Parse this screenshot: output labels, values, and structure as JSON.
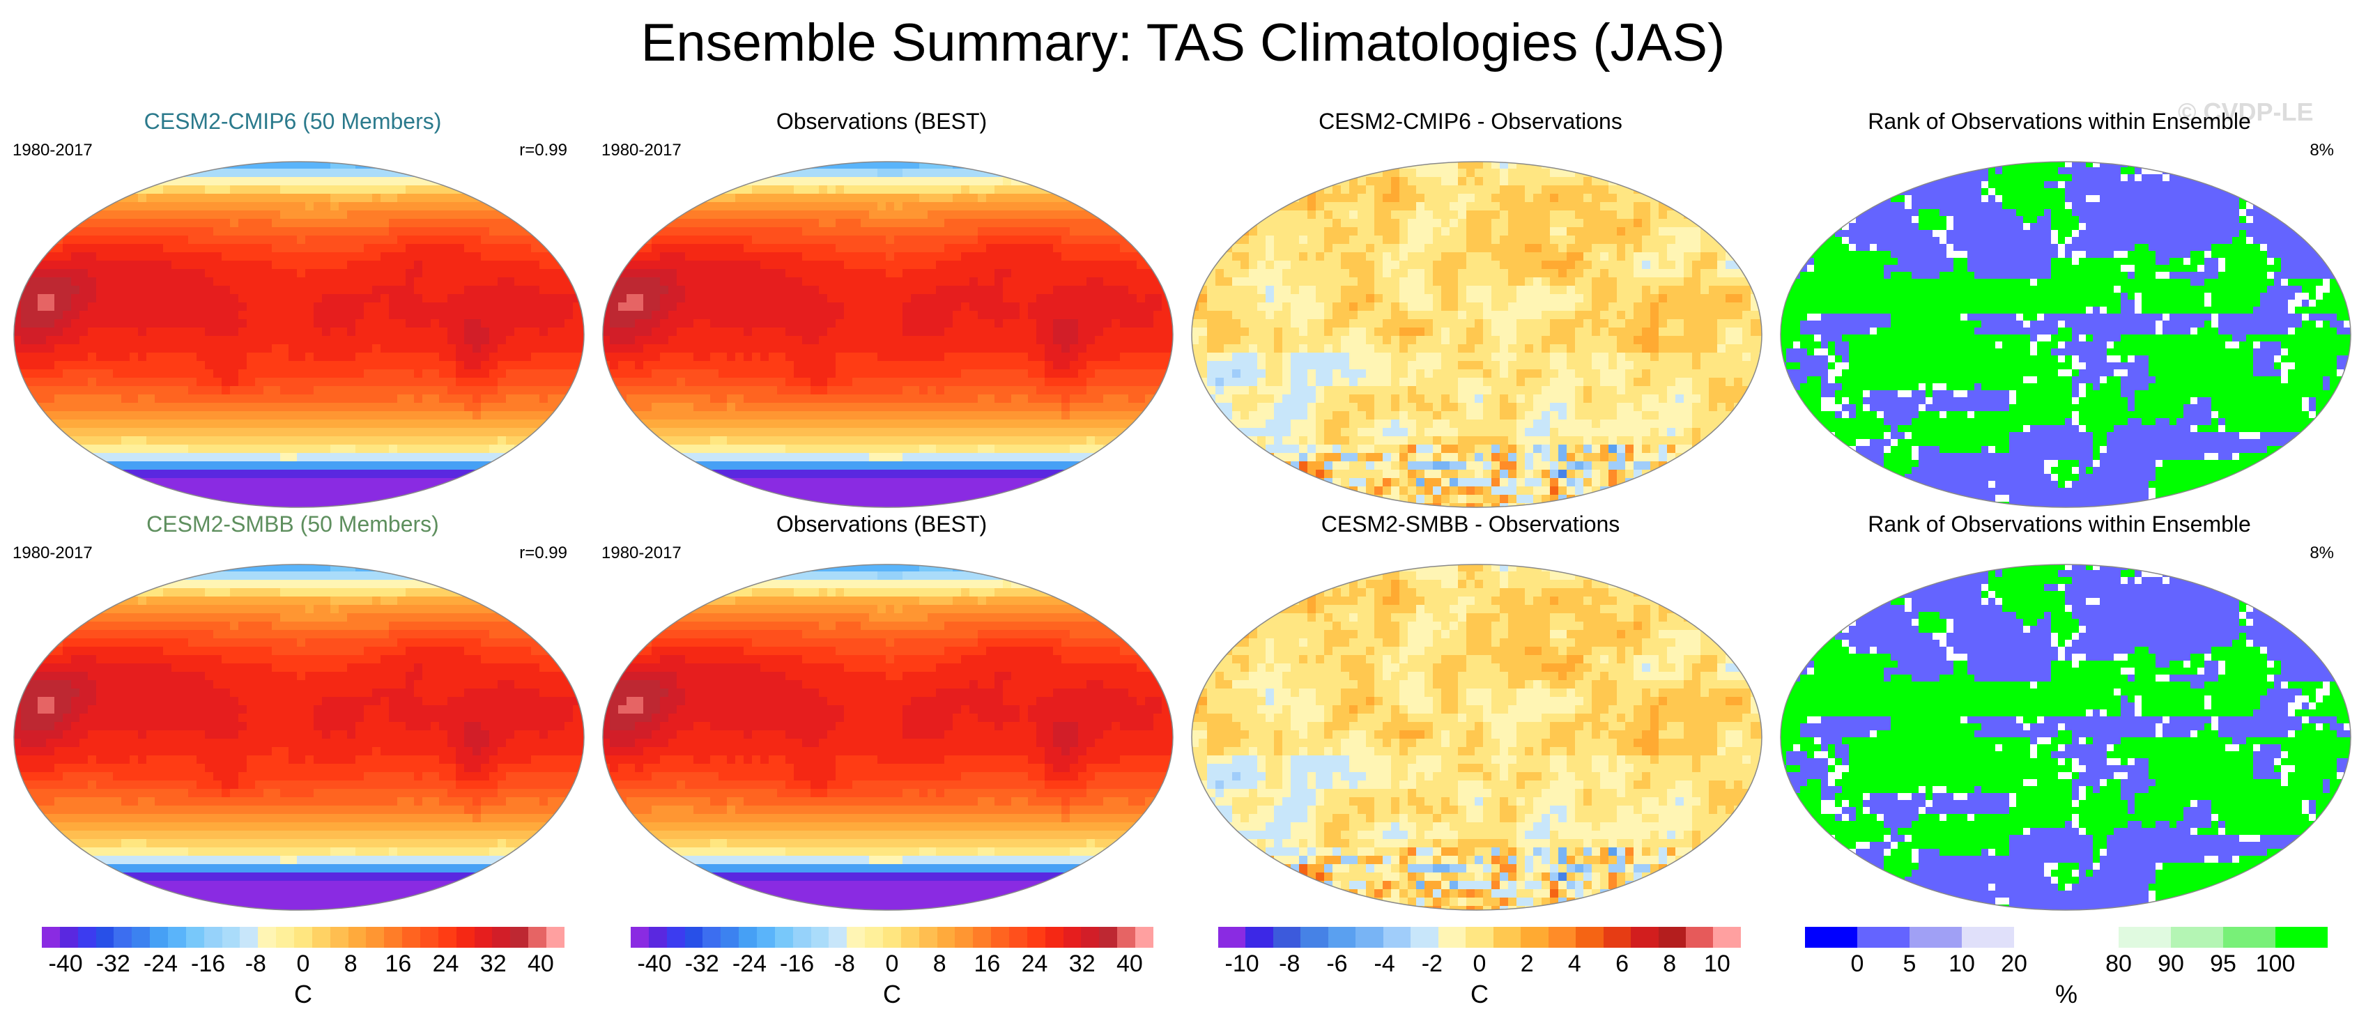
{
  "title": "Ensemble Summary: TAS Climatologies (JAS)",
  "watermark": "© CVDP-LE",
  "chart_data": [
    {
      "type": "heatmap",
      "title": "CESM2-CMIP6 (50 Members)",
      "title_color": "#2b7a8c",
      "period": "1980-2017",
      "stat": "r=0.99",
      "field": "model",
      "colorbar": "temp"
    },
    {
      "type": "heatmap",
      "title": "Observations (BEST)",
      "title_color": "#000000",
      "period": "1980-2017",
      "stat": "",
      "field": "obs",
      "colorbar": "temp"
    },
    {
      "type": "heatmap",
      "title": "CESM2-CMIP6 - Observations",
      "title_color": "#000000",
      "period": "",
      "stat": "",
      "field": "diff",
      "colorbar": "diff"
    },
    {
      "type": "heatmap",
      "title": "Rank of Observations within Ensemble",
      "title_color": "#000000",
      "period": "",
      "stat": "8%",
      "field": "rank",
      "colorbar": "rank"
    },
    {
      "type": "heatmap",
      "title": "CESM2-SMBB (50 Members)",
      "title_color": "#5e8f5e",
      "period": "1980-2017",
      "stat": "r=0.99",
      "field": "model",
      "colorbar": "temp"
    },
    {
      "type": "heatmap",
      "title": "Observations (BEST)",
      "title_color": "#000000",
      "period": "1980-2017",
      "stat": "",
      "field": "obs",
      "colorbar": "temp"
    },
    {
      "type": "heatmap",
      "title": "CESM2-SMBB - Observations",
      "title_color": "#000000",
      "period": "",
      "stat": "",
      "field": "diff",
      "colorbar": "diff"
    },
    {
      "type": "heatmap",
      "title": "Rank of Observations within Ensemble",
      "title_color": "#000000",
      "period": "",
      "stat": "8%",
      "field": "rank",
      "colorbar": "rank"
    }
  ],
  "colorbars": {
    "temp": {
      "unit": "C",
      "ticks": [
        "-40",
        "-32",
        "-24",
        "-16",
        "-8",
        "0",
        "8",
        "16",
        "24",
        "32",
        "40"
      ],
      "range": [
        -44,
        44
      ],
      "colors": [
        "#8a2be2",
        "#5a28e0",
        "#3c3cf0",
        "#2850e8",
        "#3c6ef0",
        "#3c82f0",
        "#46a0f5",
        "#5ab4fa",
        "#78c8fa",
        "#96d2fa",
        "#aadcfa",
        "#c8e6fa",
        "#fff5b4",
        "#fff09a",
        "#ffe680",
        "#ffd264",
        "#ffbe50",
        "#ffaa3c",
        "#ff9632",
        "#ff7d28",
        "#ff6420",
        "#ff501c",
        "#ff3c14",
        "#f52814",
        "#e61e1e",
        "#d21e28",
        "#be2832",
        "#e66464",
        "#ffa0a0"
      ]
    },
    "diff": {
      "unit": "C",
      "ticks": [
        "-10",
        "-8",
        "-6",
        "-4",
        "-2",
        "0",
        "2",
        "4",
        "6",
        "8",
        "10"
      ],
      "range": [
        -11,
        11
      ],
      "colors": [
        "#8a2be2",
        "#3c28e6",
        "#3c5adc",
        "#4682e6",
        "#5aa0f0",
        "#78b4f5",
        "#a0cdfa",
        "#c8e6fa",
        "#fff5b4",
        "#ffe682",
        "#ffc850",
        "#ffaa32",
        "#ff8c28",
        "#f56414",
        "#e63c14",
        "#d21e1e",
        "#b41e1e",
        "#e65a5a",
        "#ffa0a0"
      ]
    },
    "rank": {
      "unit": "%",
      "ticks": [
        "0",
        "5",
        "10",
        "20",
        "80",
        "90",
        "95",
        "100"
      ],
      "tick_pos": [
        0,
        5,
        10,
        20,
        80,
        90,
        95,
        100
      ],
      "bounds": [
        -5,
        0,
        5,
        10,
        20,
        50,
        80,
        90,
        95,
        100,
        105
      ],
      "colors": [
        "#0000ff",
        "#6464ff",
        "#a0a0f5",
        "#e0e0fa",
        "#ffffff",
        "#ffffff",
        "#e0fae0",
        "#b4f5b4",
        "#78f078",
        "#00ff00"
      ]
    }
  }
}
